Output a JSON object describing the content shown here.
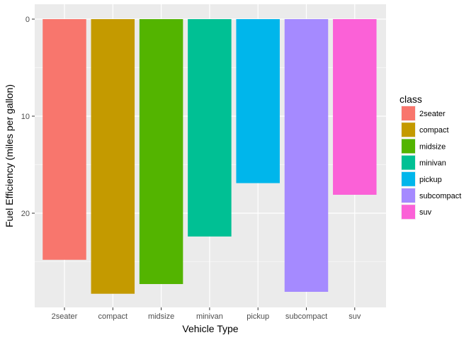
{
  "chart_data": {
    "type": "bar",
    "xlabel": "Vehicle Type",
    "ylabel": "Fuel Efficiency (miles per gallon)",
    "categories": [
      "2seater",
      "compact",
      "midsize",
      "minivan",
      "pickup",
      "subcompact",
      "suv"
    ],
    "values": [
      24.8,
      28.3,
      27.3,
      22.4,
      16.9,
      28.1,
      18.1
    ],
    "colors": [
      "#F8766D",
      "#C49A00",
      "#53B400",
      "#00C094",
      "#00B6EB",
      "#A58AFF",
      "#FB61D7"
    ],
    "y_reversed": true,
    "ylim": [
      0,
      29.5
    ],
    "yticks": [
      0,
      10,
      20
    ],
    "grid": true,
    "legend": {
      "title": "class",
      "position": "right",
      "entries": [
        "2seater",
        "compact",
        "midsize",
        "minivan",
        "pickup",
        "subcompact",
        "suv"
      ]
    },
    "panel_background": "#EBEBEB",
    "grid_color": "#FFFFFF"
  }
}
